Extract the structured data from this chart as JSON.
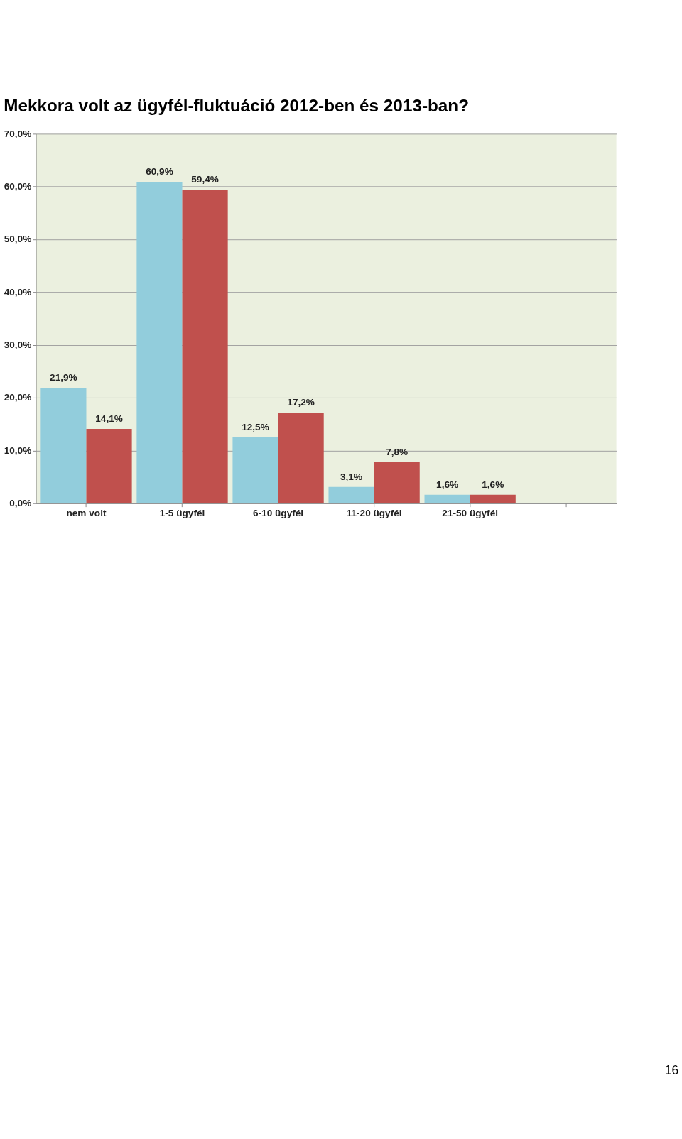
{
  "chart_data": {
    "type": "bar",
    "title": "Mekkora volt az ügyfél-fluktuáció 2012-ben és 2013-ban?",
    "categories": [
      "nem volt",
      "1-5 ügyfél",
      "6-10 ügyfél",
      "11-20 ügyfél",
      "21-50 ügyfél",
      null
    ],
    "series": [
      {
        "color": "#92cddc",
        "values": [
          21.9,
          60.9,
          12.5,
          3.1,
          1.6,
          null
        ],
        "value_labels": [
          "21,9%",
          "60,9%",
          "12,5%",
          "3,1%",
          "1,6%",
          null
        ]
      },
      {
        "color": "#c0504d",
        "values": [
          14.1,
          59.4,
          17.2,
          7.8,
          1.6,
          null
        ],
        "value_labels": [
          "14,1%",
          "59,4%",
          "17,2%",
          "7,8%",
          "1,6%",
          null
        ]
      }
    ],
    "ylim": [
      0,
      70
    ],
    "yticks": [
      {
        "value": 0,
        "label": "0,0%"
      },
      {
        "value": 10,
        "label": "10,0%"
      },
      {
        "value": 20,
        "label": "20,0%"
      },
      {
        "value": 30,
        "label": "30,0%"
      },
      {
        "value": 40,
        "label": "40,0%"
      },
      {
        "value": 50,
        "label": "50,0%"
      },
      {
        "value": 60,
        "label": "60,0%"
      },
      {
        "value": 70,
        "label": "70,0%"
      }
    ],
    "grid": "y",
    "annotations": [
      "16"
    ]
  }
}
